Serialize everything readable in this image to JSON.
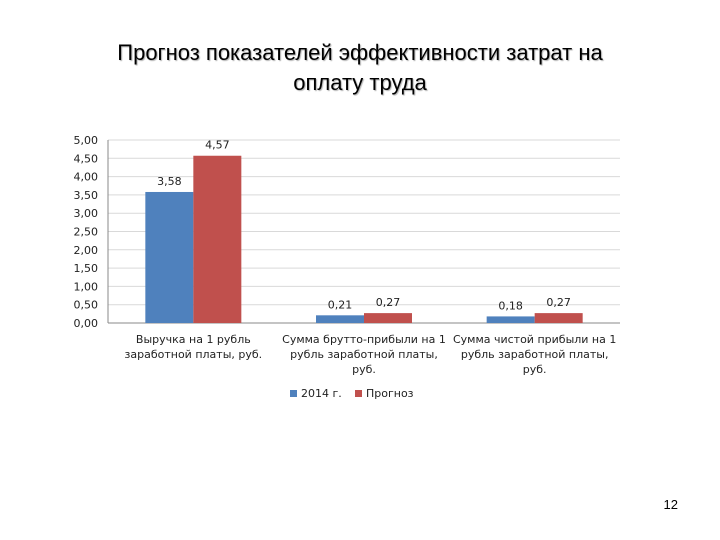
{
  "slide": {
    "title_line1": "Прогноз  показателей эффективности затрат на",
    "title_line2": "оплату труда",
    "page_number": "12"
  },
  "colors": {
    "series1": "#4F81BD",
    "series2": "#C0504D",
    "grid": "#D9D9D9",
    "axis": "#888888"
  },
  "chart_data": {
    "type": "bar",
    "categories": [
      [
        "Выручка на 1 рубль",
        "заработной платы, руб."
      ],
      [
        "Сумма брутто-прибыли на 1",
        "рубль заработной платы,",
        "руб."
      ],
      [
        "Сумма чистой прибыли на 1",
        "рубль заработной платы,",
        "руб."
      ]
    ],
    "series": [
      {
        "name": "2014 г.",
        "values": [
          3.58,
          0.21,
          0.18
        ],
        "labels": [
          "3,58",
          "0,21",
          "0,18"
        ]
      },
      {
        "name": "Прогноз",
        "values": [
          4.57,
          0.27,
          0.27
        ],
        "labels": [
          "4,57",
          "0,27",
          "0,27"
        ]
      }
    ],
    "ylim": [
      0,
      5
    ],
    "yticks": [
      5,
      4.5,
      4,
      3.5,
      3,
      2.5,
      2,
      1.5,
      1,
      0.5,
      0
    ],
    "ytick_labels": [
      "5,00",
      "4,50",
      "4,00",
      "3,50",
      "3,00",
      "2,50",
      "2,00",
      "1,50",
      "1,00",
      "0,50",
      "0,00"
    ],
    "grid": true,
    "legend_position": "bottom",
    "title": "",
    "xlabel": "",
    "ylabel": ""
  }
}
